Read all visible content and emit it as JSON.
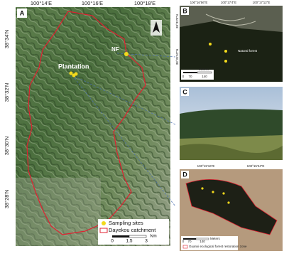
{
  "panel_a": {
    "label": "A",
    "x_ticks": [
      "100°14'E",
      "100°16'E",
      "100°18'E"
    ],
    "y_ticks": [
      "38°34'N",
      "38°32'N",
      "38°30'N",
      "38°28'N"
    ],
    "site_labels": [
      "NF",
      "Plantation"
    ],
    "legend": [
      "Sampling sites",
      "Dayekou catchment"
    ],
    "scale": [
      "0",
      "1.5",
      "3",
      "km"
    ]
  },
  "panel_b": {
    "label": "B",
    "x_ticks": [
      "100°16'56\"E",
      "100°17'4\"E",
      "100°17'12\"E"
    ],
    "y_ticks": [
      "38°32'0\"N",
      "38°31'52\"N"
    ],
    "annotation": "Natural forest",
    "scale": [
      "0",
      "70",
      "140"
    ],
    "scale_unit": "Meters"
  },
  "panel_c": {
    "label": "C"
  },
  "panel_d": {
    "label": "D",
    "x_ticks": [
      "100°15'16\"E",
      "100°15'24\"E"
    ],
    "scale": [
      "0",
      "70",
      "140"
    ],
    "scale_unit": "Meters",
    "legend": "Guanxi ecological forest restoration zone"
  }
}
